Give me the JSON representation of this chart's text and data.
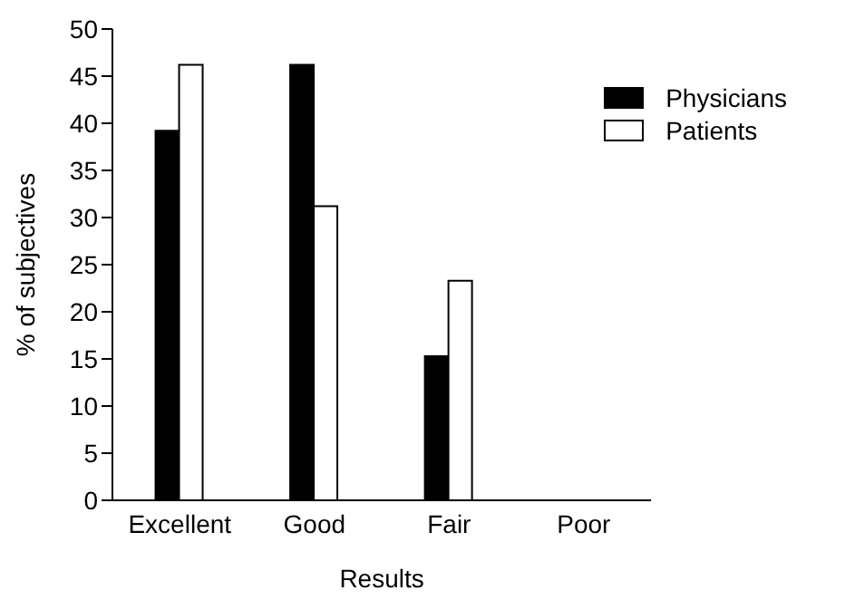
{
  "chart_data": {
    "type": "bar",
    "xlabel": "Results",
    "ylabel": "% of subjectives",
    "categories": [
      "Excellent",
      "Good",
      "Fair",
      "Poor"
    ],
    "series": [
      {
        "name": "Physicians",
        "color": "#000000",
        "values": [
          39.2,
          46.2,
          15.3,
          0
        ]
      },
      {
        "name": "Patients",
        "color": "#ffffff",
        "values": [
          46.2,
          31.2,
          23.3,
          0
        ]
      }
    ],
    "ylim": [
      0,
      50
    ],
    "yticks": [
      0,
      5,
      10,
      15,
      20,
      25,
      30,
      35,
      40,
      45,
      50
    ],
    "grid": false,
    "legend": "top right"
  }
}
